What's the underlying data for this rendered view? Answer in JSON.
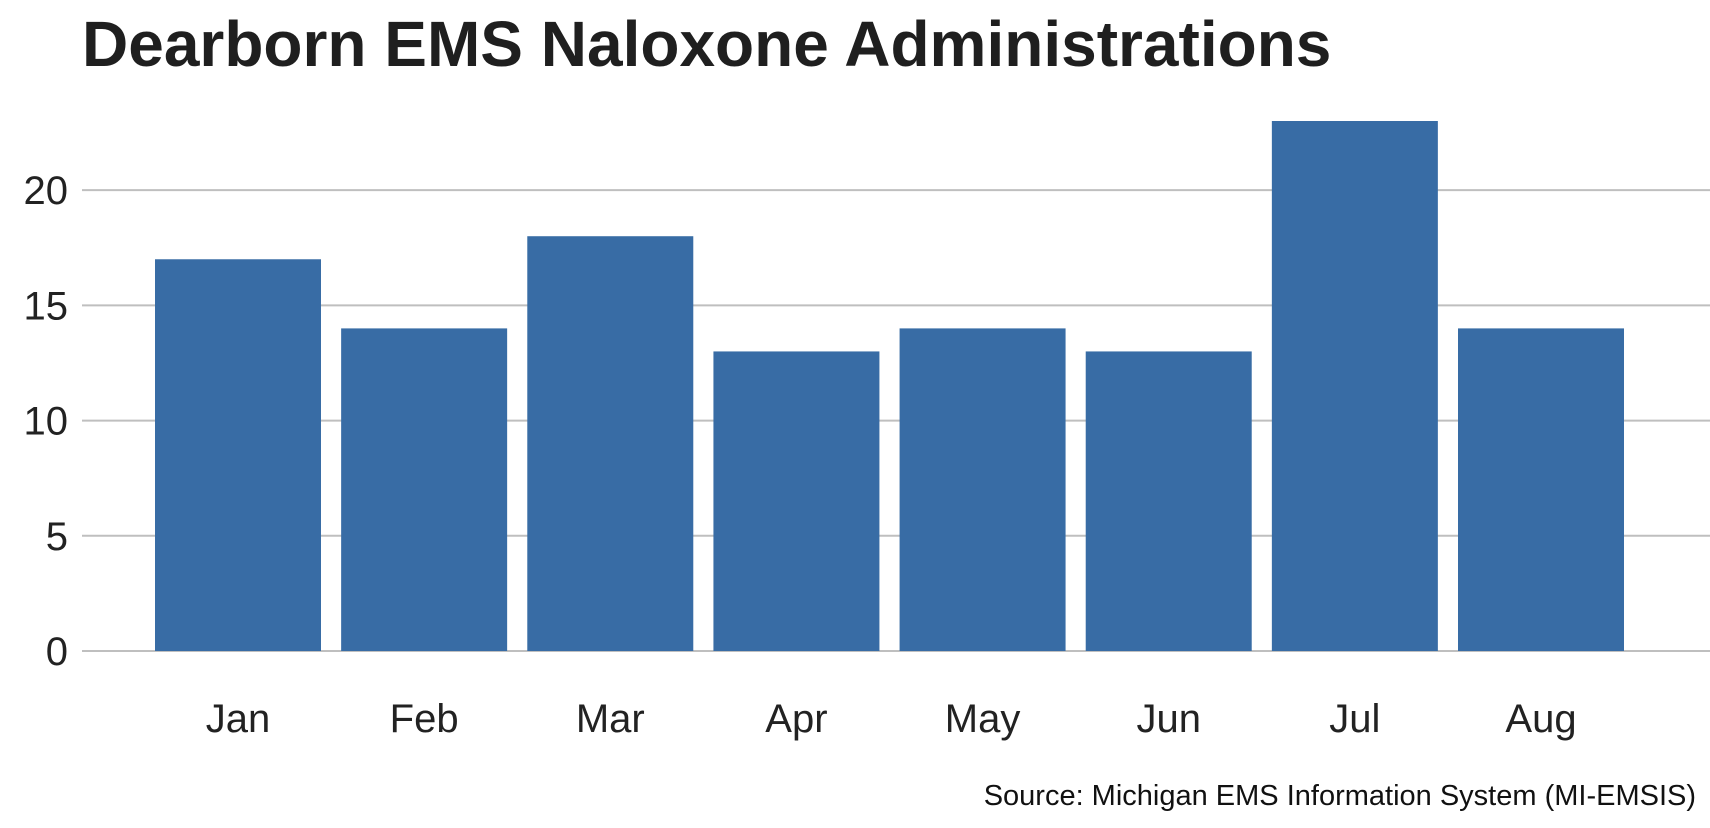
{
  "chart_data": {
    "type": "bar",
    "title": "Dearborn EMS Naloxone Administrations",
    "source": "Source: Michigan EMS Information System (MI-EMSIS)",
    "categories": [
      "Jan",
      "Feb",
      "Mar",
      "Apr",
      "May",
      "Jun",
      "Jul",
      "Aug"
    ],
    "values": [
      17,
      14,
      18,
      13,
      14,
      13,
      23,
      14
    ],
    "ylim": [
      0,
      23
    ],
    "yticks": [
      0,
      5,
      10,
      15,
      20
    ],
    "xlabel": "",
    "ylabel": "",
    "grid": true,
    "bar_color": "#386ca5",
    "grid_color": "#bfbfbf",
    "text_color": "#222222"
  }
}
